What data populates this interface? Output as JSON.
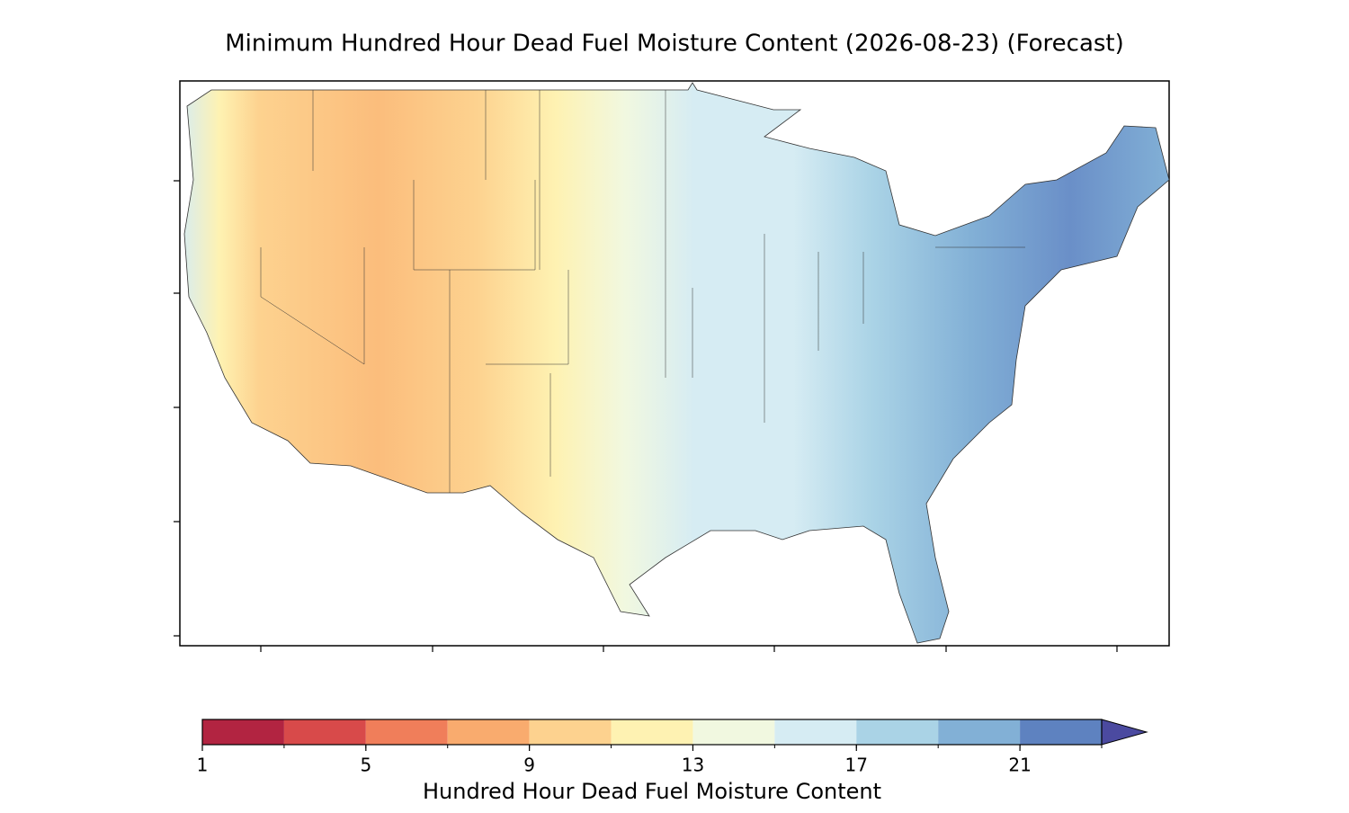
{
  "title": "Minimum Hundred Hour Dead Fuel Moisture Content (2026-08-23) (Forecast)",
  "colorbar": {
    "label": "Hundred Hour Dead Fuel Moisture Content",
    "levels": [
      1,
      3,
      5,
      7,
      9,
      11,
      13,
      15,
      17,
      19,
      21,
      23
    ],
    "colors": [
      "#b22441",
      "#d84a4a",
      "#f07e5a",
      "#f9ab6e",
      "#fdd28f",
      "#fef2b2",
      "#f1f8e0",
      "#d6ecf3",
      "#aad3e6",
      "#82b0d6",
      "#5e82c0"
    ],
    "extend_color": "#4b4aa0",
    "ticks": [
      1,
      5,
      9,
      13,
      17,
      21
    ]
  }
}
